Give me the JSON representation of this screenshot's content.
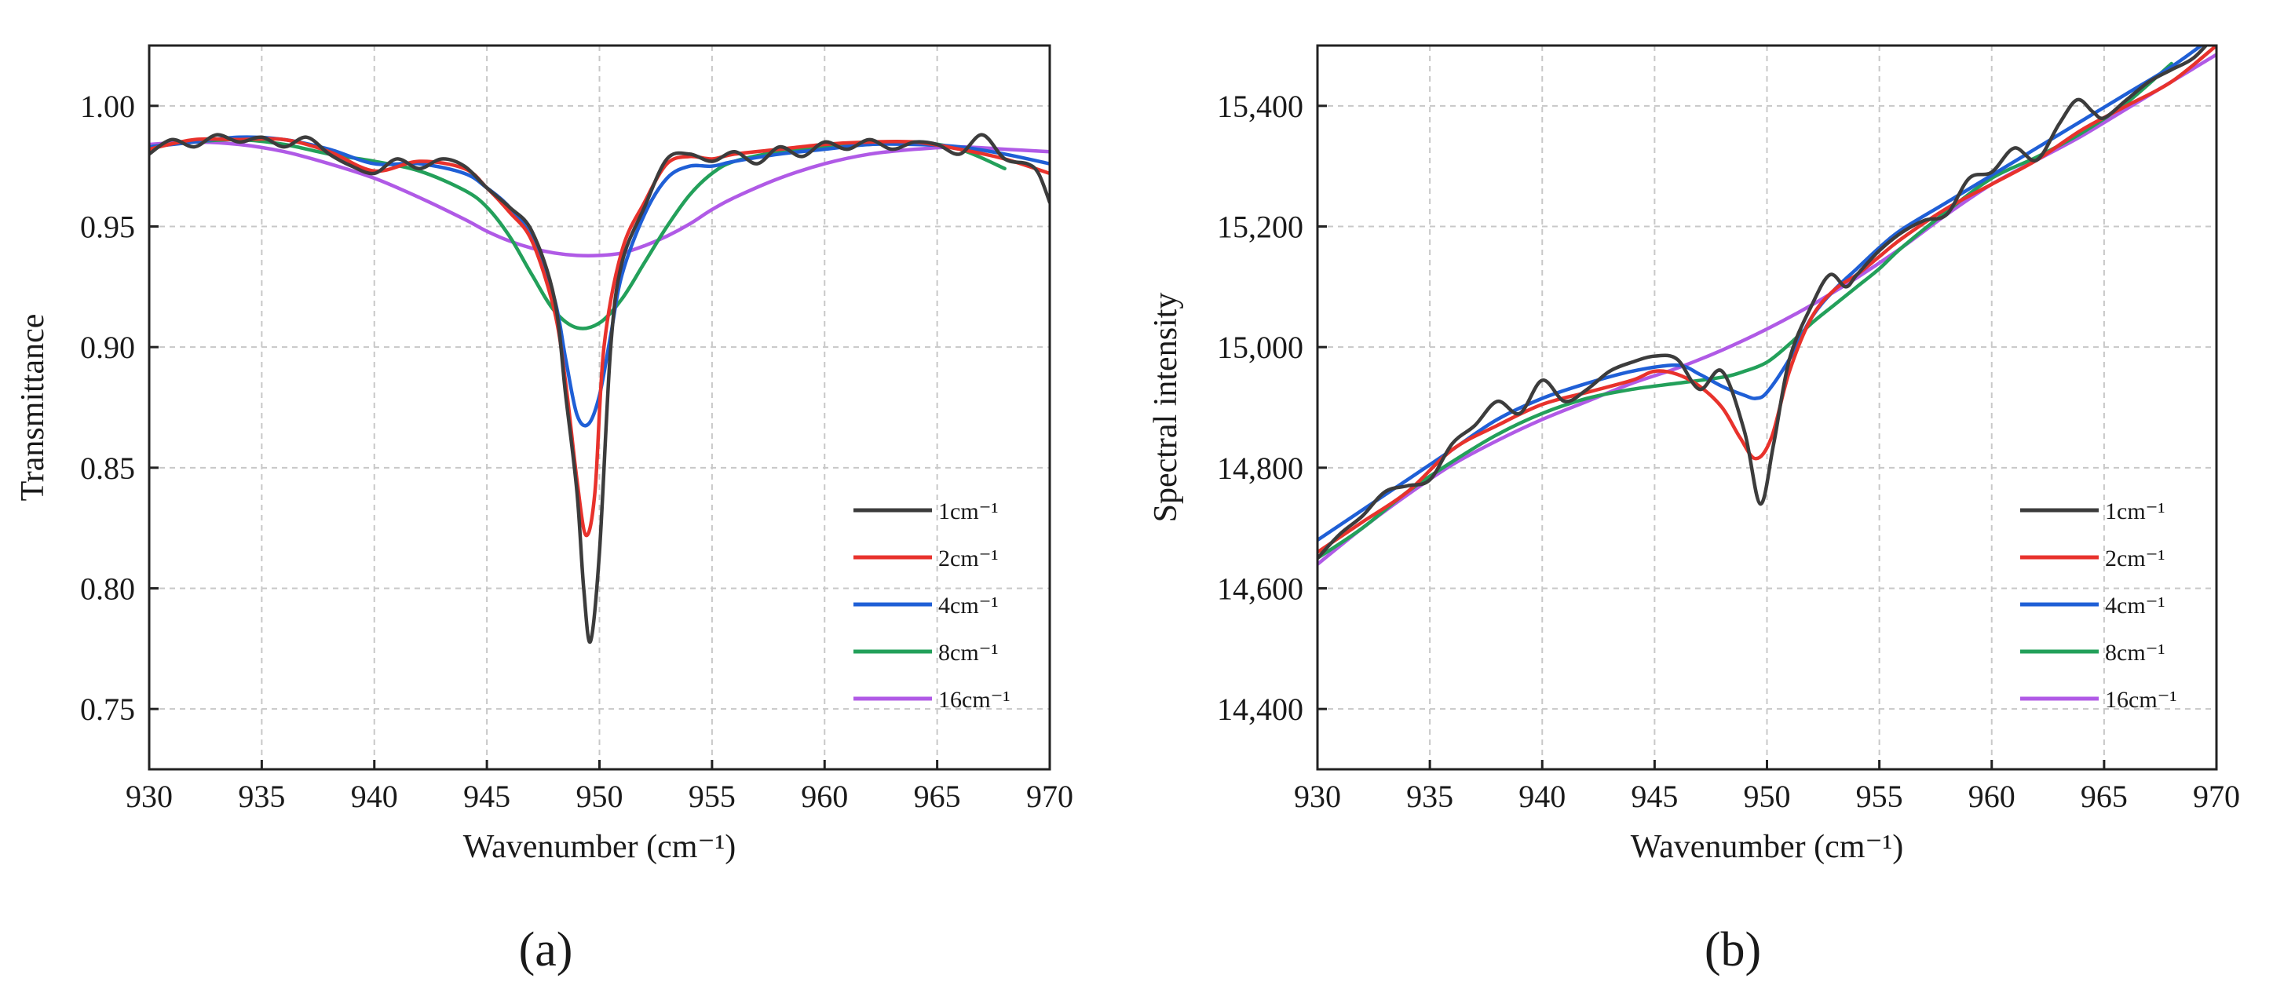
{
  "colors": {
    "1cm": "#3c3c3c",
    "2cm": "#e8322c",
    "4cm": "#1f5fd6",
    "8cm": "#23a05a",
    "16cm": "#b05ae6",
    "grid": "#c8c8c8",
    "axis": "#222222"
  },
  "chart_data": [
    {
      "type": "line",
      "panel_label": "(a)",
      "xlabel": "Wavenumber (cm⁻¹)",
      "ylabel": "Transmittance",
      "xlim": [
        930,
        970
      ],
      "ylim": [
        0.725,
        1.025
      ],
      "xticks": [
        930,
        935,
        940,
        945,
        950,
        955,
        960,
        965,
        970
      ],
      "xtick_labels": [
        "930",
        "935",
        "940",
        "945",
        "950",
        "955",
        "960",
        "965",
        "970"
      ],
      "yticks": [
        0.75,
        0.8,
        0.85,
        0.9,
        0.95,
        1.0
      ],
      "ytick_labels": [
        "0.75",
        "0.80",
        "0.85",
        "0.90",
        "0.95",
        "1.00"
      ],
      "grid": true,
      "legend_position": "bottom-right",
      "series": [
        {
          "name": "1cm⁻¹",
          "color_key": "1cm",
          "x": [
            930,
            931,
            932,
            933,
            934,
            935,
            936,
            937,
            938,
            939,
            940,
            941,
            942,
            943,
            944,
            945,
            946,
            947,
            948,
            948.5,
            949,
            949.3,
            949.6,
            950,
            950.5,
            951,
            952,
            953,
            954,
            955,
            956,
            957,
            958,
            959,
            960,
            961,
            962,
            963,
            964,
            965,
            966,
            967,
            968,
            969,
            969.5,
            970
          ],
          "y": [
            0.98,
            0.986,
            0.983,
            0.988,
            0.985,
            0.987,
            0.983,
            0.987,
            0.98,
            0.975,
            0.972,
            0.978,
            0.974,
            0.978,
            0.975,
            0.966,
            0.958,
            0.948,
            0.92,
            0.88,
            0.84,
            0.8,
            0.778,
            0.815,
            0.9,
            0.935,
            0.958,
            0.978,
            0.98,
            0.977,
            0.981,
            0.976,
            0.983,
            0.979,
            0.985,
            0.982,
            0.986,
            0.982,
            0.985,
            0.984,
            0.98,
            0.988,
            0.978,
            0.976,
            0.972,
            0.96
          ]
        },
        {
          "name": "2cm⁻¹",
          "color_key": "2cm",
          "x": [
            930,
            932,
            934,
            936,
            938,
            940,
            942,
            944,
            945,
            946,
            947,
            948,
            948.5,
            949,
            949.4,
            949.8,
            950.2,
            951,
            952,
            953,
            954,
            955,
            956,
            958,
            960,
            962,
            964,
            966,
            968,
            970
          ],
          "y": [
            0.982,
            0.986,
            0.986,
            0.986,
            0.981,
            0.973,
            0.977,
            0.974,
            0.966,
            0.956,
            0.944,
            0.915,
            0.885,
            0.845,
            0.822,
            0.84,
            0.9,
            0.94,
            0.96,
            0.976,
            0.979,
            0.978,
            0.98,
            0.982,
            0.984,
            0.985,
            0.985,
            0.982,
            0.978,
            0.972
          ]
        },
        {
          "name": "4cm⁻¹",
          "color_key": "4cm",
          "x": [
            930,
            932,
            934,
            936,
            938,
            940,
            942,
            944,
            945,
            946,
            947,
            948,
            948.5,
            949,
            949.5,
            950,
            950.5,
            951,
            952,
            953,
            954,
            955,
            956,
            958,
            960,
            962,
            964,
            966,
            968,
            970
          ],
          "y": [
            0.983,
            0.985,
            0.987,
            0.986,
            0.982,
            0.976,
            0.976,
            0.972,
            0.966,
            0.958,
            0.945,
            0.92,
            0.895,
            0.872,
            0.868,
            0.88,
            0.905,
            0.93,
            0.955,
            0.97,
            0.975,
            0.975,
            0.977,
            0.98,
            0.982,
            0.984,
            0.984,
            0.983,
            0.98,
            0.976
          ]
        },
        {
          "name": "8cm⁻¹",
          "color_key": "8cm",
          "x": [
            930,
            932,
            934,
            936,
            938,
            940,
            942,
            944,
            945,
            946,
            947,
            948,
            949,
            950,
            951,
            952,
            953,
            954,
            955,
            956,
            958,
            960,
            962,
            964,
            966,
            968
          ],
          "y": [
            0.983,
            0.985,
            0.986,
            0.984,
            0.98,
            0.977,
            0.973,
            0.965,
            0.958,
            0.946,
            0.93,
            0.915,
            0.908,
            0.91,
            0.92,
            0.935,
            0.95,
            0.963,
            0.972,
            0.977,
            0.981,
            0.983,
            0.984,
            0.985,
            0.982,
            0.974
          ]
        },
        {
          "name": "16cm⁻¹",
          "color_key": "16cm",
          "x": [
            930,
            932,
            934,
            936,
            938,
            940,
            942,
            944,
            945,
            946,
            947,
            948,
            949,
            950,
            951,
            952,
            953,
            954,
            955,
            956,
            958,
            960,
            962,
            964,
            966,
            968,
            970
          ],
          "y": [
            0.984,
            0.985,
            0.984,
            0.981,
            0.976,
            0.97,
            0.962,
            0.953,
            0.948,
            0.944,
            0.941,
            0.939,
            0.938,
            0.938,
            0.939,
            0.942,
            0.946,
            0.951,
            0.957,
            0.962,
            0.97,
            0.976,
            0.98,
            0.982,
            0.983,
            0.982,
            0.981
          ]
        }
      ]
    },
    {
      "type": "line",
      "panel_label": "(b)",
      "xlabel": "Wavenumber (cm⁻¹)",
      "ylabel": "Spectral intensity",
      "xlim": [
        930,
        970
      ],
      "ylim": [
        14300,
        15500
      ],
      "xticks": [
        930,
        935,
        940,
        945,
        950,
        955,
        960,
        965,
        970
      ],
      "xtick_labels": [
        "930",
        "935",
        "940",
        "945",
        "950",
        "955",
        "960",
        "965",
        "970"
      ],
      "yticks": [
        14400,
        14600,
        14800,
        15000,
        15200,
        15400
      ],
      "ytick_labels": [
        "14,400",
        "14,600",
        "14,800",
        "15,000",
        "15,200",
        "15,400"
      ],
      "grid": true,
      "legend_position": "bottom-right",
      "series": [
        {
          "name": "1cm⁻¹",
          "color_key": "1cm",
          "x": [
            930,
            931,
            932,
            933,
            934,
            935,
            936,
            937,
            938,
            939,
            940,
            941,
            942,
            943,
            944,
            945,
            946,
            947,
            948,
            949,
            949.7,
            950.3,
            951,
            952,
            952.8,
            953.5,
            954,
            955,
            956,
            957,
            958,
            959,
            960,
            961,
            962,
            963,
            963.8,
            964.5,
            965,
            966,
            967,
            968,
            969,
            970
          ],
          "y": [
            14650,
            14690,
            14720,
            14760,
            14770,
            14780,
            14840,
            14870,
            14910,
            14890,
            14945,
            14910,
            14930,
            14960,
            14975,
            14985,
            14980,
            14930,
            14960,
            14860,
            14740,
            14840,
            14980,
            15070,
            15120,
            15100,
            15120,
            15160,
            15190,
            15210,
            15220,
            15280,
            15290,
            15330,
            15310,
            15370,
            15410,
            15390,
            15380,
            15410,
            15440,
            15460,
            15480,
            15520
          ]
        },
        {
          "name": "2cm⁻¹",
          "color_key": "2cm",
          "x": [
            930,
            932,
            934,
            936,
            938,
            940,
            942,
            944,
            945,
            946,
            947,
            948,
            948.8,
            949.5,
            950.2,
            951,
            952,
            953,
            954,
            955,
            956,
            958,
            960,
            962,
            964,
            966,
            968,
            970
          ],
          "y": [
            14660,
            14710,
            14760,
            14830,
            14870,
            14905,
            14925,
            14945,
            14960,
            14955,
            14935,
            14900,
            14850,
            14815,
            14850,
            14960,
            15050,
            15095,
            15120,
            15150,
            15180,
            15230,
            15270,
            15310,
            15360,
            15400,
            15440,
            15500
          ]
        },
        {
          "name": "4cm⁻¹",
          "color_key": "4cm",
          "x": [
            930,
            932,
            934,
            936,
            938,
            940,
            942,
            944,
            946,
            947,
            948,
            949,
            949.5,
            950,
            951,
            952,
            953,
            954,
            955,
            956,
            958,
            960,
            962,
            964,
            966,
            968,
            969.5
          ],
          "y": [
            14680,
            14730,
            14780,
            14830,
            14880,
            14915,
            14940,
            14960,
            14970,
            14955,
            14935,
            14920,
            14915,
            14925,
            14980,
            15050,
            15095,
            15130,
            15165,
            15195,
            15240,
            15285,
            15330,
            15375,
            15420,
            15465,
            15505
          ]
        },
        {
          "name": "8cm⁻¹",
          "color_key": "8cm",
          "x": [
            930,
            932,
            934,
            936,
            938,
            940,
            942,
            944,
            946,
            948,
            949,
            950,
            951,
            952,
            953,
            954,
            955,
            956,
            958,
            960,
            962,
            964,
            966,
            968
          ],
          "y": [
            14650,
            14700,
            14760,
            14810,
            14855,
            14890,
            14915,
            14930,
            14940,
            14950,
            14960,
            14975,
            15005,
            15040,
            15070,
            15100,
            15130,
            15165,
            15225,
            15280,
            15315,
            15355,
            15405,
            15470
          ]
        },
        {
          "name": "16cm⁻¹",
          "color_key": "16cm",
          "x": [
            930,
            932,
            934,
            936,
            938,
            940,
            942,
            944,
            946,
            948,
            950,
            952,
            954,
            956,
            958,
            960,
            962,
            964,
            966,
            968,
            970
          ],
          "y": [
            14640,
            14700,
            14755,
            14805,
            14845,
            14880,
            14910,
            14940,
            14965,
            14995,
            15030,
            15070,
            15115,
            15165,
            15220,
            15270,
            15310,
            15350,
            15395,
            15440,
            15485
          ]
        }
      ]
    }
  ]
}
